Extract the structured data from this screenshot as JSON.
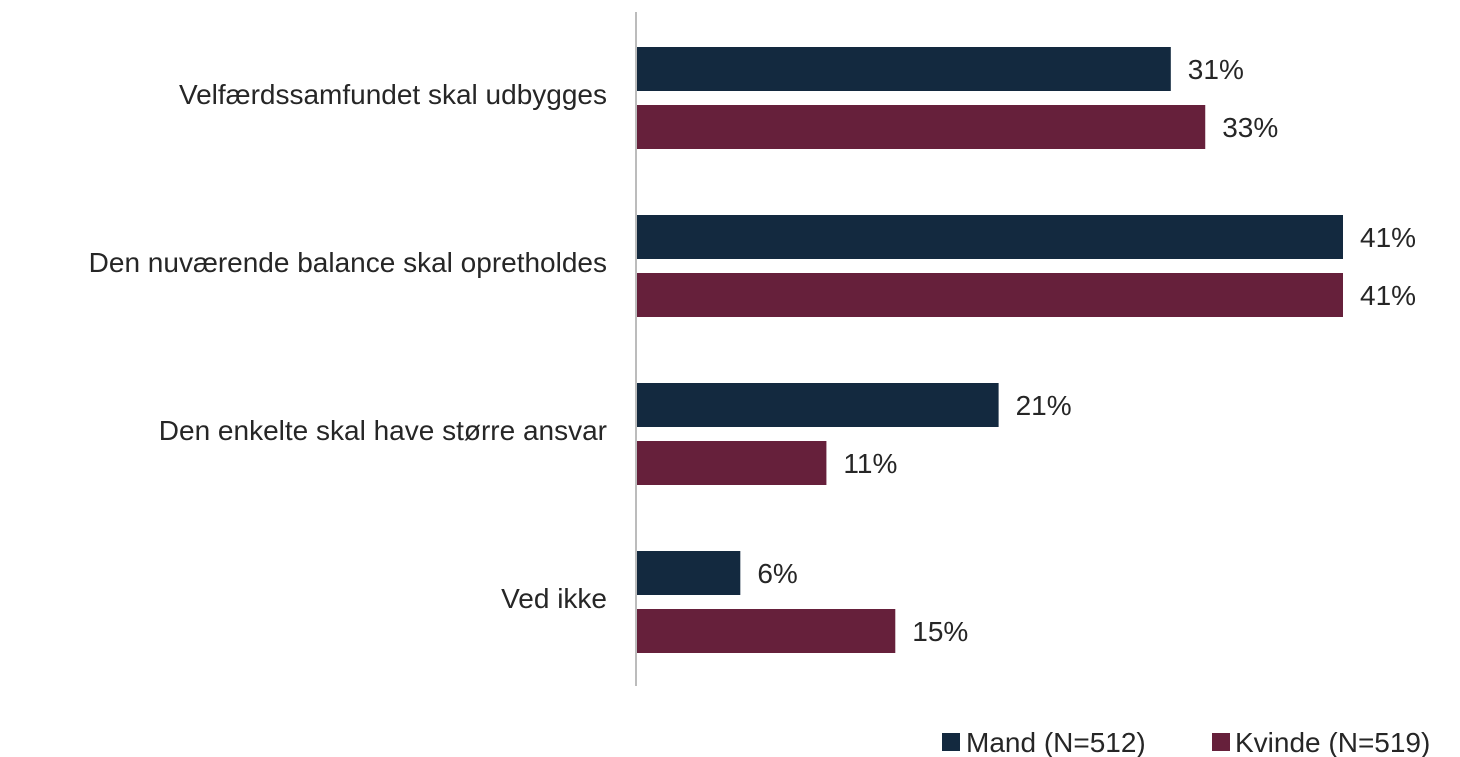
{
  "chart_data": {
    "type": "bar",
    "orientation": "horizontal",
    "categories": [
      "Velfærdssamfundet skal udbygges",
      "Den nuværende balance skal opretholdes",
      "Den enkelte skal have større ansvar",
      "Ved ikke"
    ],
    "series": [
      {
        "name": "Mand (N=512)",
        "color": "#13293f",
        "values": [
          31,
          41,
          21,
          6
        ],
        "labels": [
          "31%",
          "41%",
          "21%",
          "6%"
        ]
      },
      {
        "name": "Kvinde (N=519)",
        "color": "#66203b",
        "values": [
          33,
          41,
          11,
          15
        ],
        "labels": [
          "33%",
          "41%",
          "11%",
          "15%"
        ]
      }
    ],
    "title": "",
    "xlabel": "",
    "ylabel": "",
    "xlim": [
      0,
      41
    ],
    "grid": false,
    "legend_position": "bottom-right"
  }
}
